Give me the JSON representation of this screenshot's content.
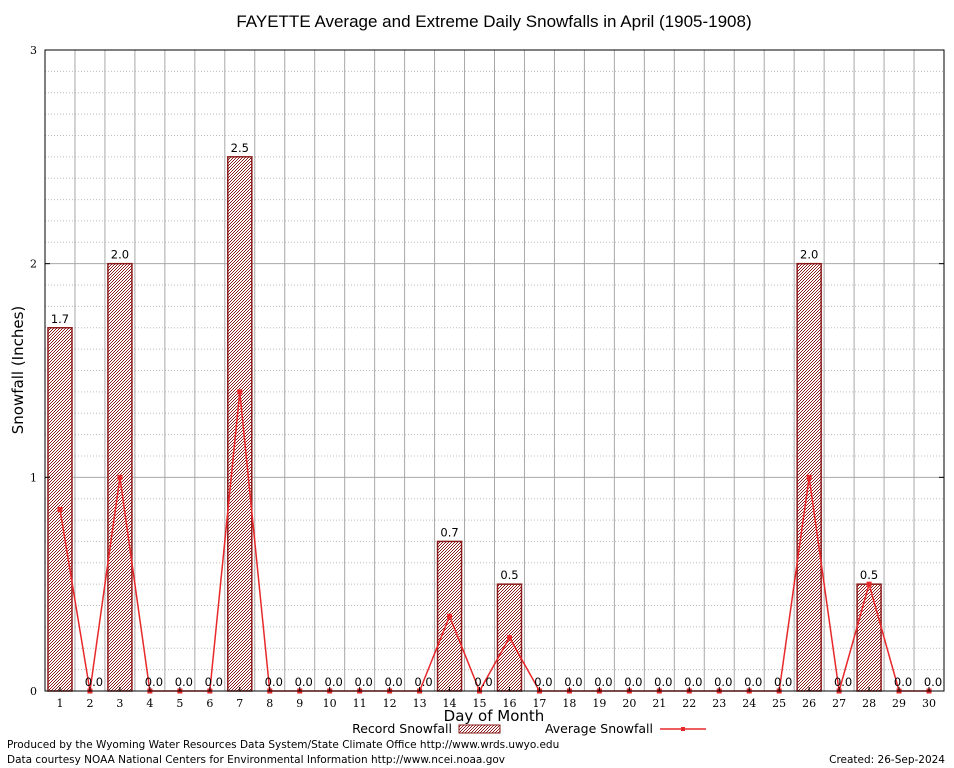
{
  "chart_data": {
    "type": "bar",
    "title": "FAYETTE Average and Extreme Daily Snowfalls in April (1905-1908)",
    "xlabel": "Day of Month",
    "ylabel": "Snowfall (Inches)",
    "ylim": [
      0,
      3
    ],
    "yticks": [
      "0",
      "1",
      "2",
      "3"
    ],
    "grid": true,
    "legend_position": "bottom",
    "categories": [
      "1",
      "2",
      "3",
      "4",
      "5",
      "6",
      "7",
      "8",
      "9",
      "10",
      "11",
      "12",
      "13",
      "14",
      "15",
      "16",
      "17",
      "18",
      "19",
      "20",
      "21",
      "22",
      "23",
      "24",
      "25",
      "26",
      "27",
      "28",
      "29",
      "30"
    ],
    "series": [
      {
        "name": "Record Snowfall",
        "type": "bar",
        "color": "#8b1a1a",
        "values": [
          1.7,
          0.0,
          2.0,
          0.0,
          0.0,
          0.0,
          2.5,
          0.0,
          0.0,
          0.0,
          0.0,
          0.0,
          0.0,
          0.7,
          0.0,
          0.5,
          0.0,
          0.0,
          0.0,
          0.0,
          0.0,
          0.0,
          0.0,
          0.0,
          0.0,
          2.0,
          0.0,
          0.5,
          0.0,
          0.0
        ],
        "labels": [
          "1.7",
          "0.0",
          "2.0",
          "0.0",
          "0.0",
          "0.0",
          "2.5",
          "0.0",
          "0.0",
          "0.0",
          "0.0",
          "0.0",
          "0.0",
          "0.7",
          "0.0",
          "0.5",
          "0.0",
          "0.0",
          "0.0",
          "0.0",
          "0.0",
          "0.0",
          "0.0",
          "0.0",
          "0.0",
          "2.0",
          "0.0",
          "0.5",
          "0.0",
          "0.0"
        ]
      },
      {
        "name": "Average Snowfall",
        "type": "line",
        "color": "#e8282a",
        "values": [
          0.85,
          0.0,
          1.0,
          0.0,
          0.0,
          0.0,
          1.4,
          0.0,
          0.0,
          0.0,
          0.0,
          0.0,
          0.0,
          0.35,
          0.0,
          0.25,
          0.0,
          0.0,
          0.0,
          0.0,
          0.0,
          0.0,
          0.0,
          0.0,
          0.0,
          1.0,
          0.0,
          0.5,
          0.0,
          0.0
        ]
      }
    ]
  },
  "footer": {
    "produced_by": "Produced by the Wyoming Water Resources Data System/State Climate Office http://www.wrds.uwyo.edu",
    "courtesy": "Data courtesy NOAA National Centers for Environmental Information http://www.ncei.noaa.gov",
    "created": "Created:  26-Sep-2024"
  }
}
